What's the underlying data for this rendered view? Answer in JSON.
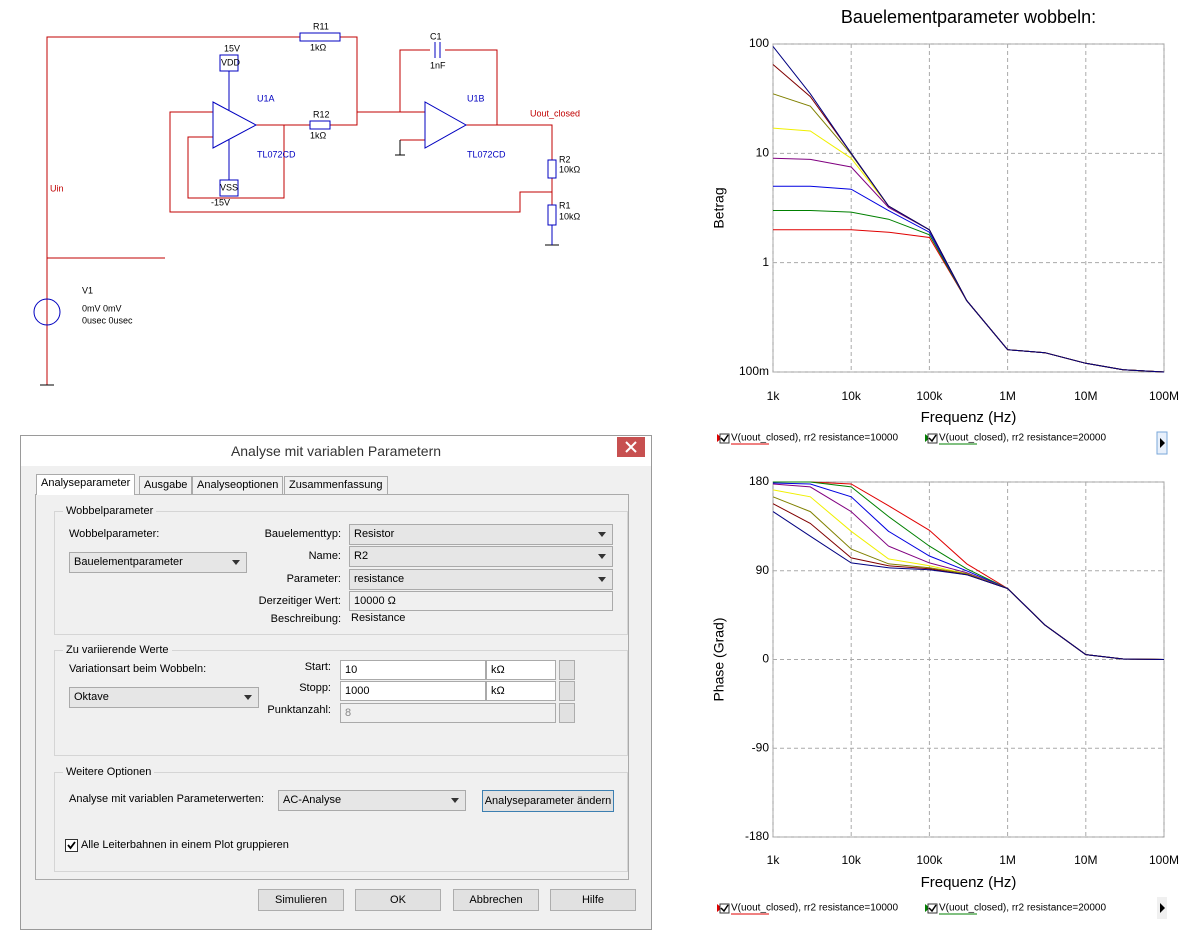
{
  "schematic": {
    "labels": [
      "R11",
      "1kΩ",
      "15V",
      "VDD",
      "U1A",
      "R12",
      "1kΩ",
      "TL072CD",
      "VSS",
      "-15V",
      "C1",
      "1nF",
      "U1B",
      "TL072CD",
      "Uout_closed",
      "R2",
      "10kΩ",
      "R1",
      "10kΩ",
      "Uin",
      "V1",
      "0mV 0mV",
      "0usec 0usec"
    ]
  },
  "dialog": {
    "title": "Analyse mit variablen Parametern",
    "tabs": [
      "Analyseparameter",
      "Ausgabe",
      "Analyseoptionen",
      "Zusammenfassung"
    ],
    "sweep": {
      "group": "Wobbelparameter",
      "label": "Wobbelparameter:",
      "value": "Bauelementparameter",
      "fields": [
        [
          "Bauelementtyp:",
          "Resistor"
        ],
        [
          "Name:",
          "R2"
        ],
        [
          "Parameter:",
          "resistance"
        ],
        [
          "Derzeitiger Wert:",
          "10000 Ω"
        ],
        [
          "Beschreibung:",
          "Resistance"
        ]
      ]
    },
    "vary": {
      "group": "Zu variierende Werte",
      "label": "Variationsart beim Wobbeln:",
      "value": "Oktave",
      "fields": [
        [
          "Start:",
          "10",
          "kΩ"
        ],
        [
          "Stopp:",
          "1000",
          "kΩ"
        ],
        [
          "Punktanzahl:",
          "8"
        ]
      ]
    },
    "options": {
      "group": "Weitere Optionen",
      "label": "Analyse mit variablen Parameterwerten:",
      "value": "AC-Analyse",
      "button": "Analyseparameter ändern",
      "checkbox": "Alle Leiterbahnen in einem Plot gruppieren"
    },
    "buttons": [
      "Simulieren",
      "OK",
      "Abbrechen",
      "Hilfe"
    ]
  },
  "chart_data": [
    {
      "type": "line",
      "title": "Bauelementparameter wobbeln:",
      "x_label": "Frequenz (Hz)",
      "y_label": "Betrag",
      "xlog": true,
      "ylog": true,
      "grid": true,
      "x": [
        1000,
        3000,
        10000,
        30000,
        100000,
        300000,
        1000000,
        3000000,
        10000000,
        30000000,
        100000000
      ],
      "xlim": [
        1000,
        100000000
      ],
      "xticks": [
        {
          "value": 1000,
          "label": "1k"
        },
        {
          "value": 10000,
          "label": "10k"
        },
        {
          "value": 100000,
          "label": "100k"
        },
        {
          "value": 1000000,
          "label": "1M"
        },
        {
          "value": 10000000,
          "label": "10M"
        },
        {
          "value": 100000000,
          "label": "100M"
        }
      ],
      "ylim": [
        0.1,
        100
      ],
      "yticks": [
        {
          "value": 0.1,
          "label": "100m"
        },
        1,
        10,
        100
      ],
      "series": [
        {
          "name": "V(uout_closed), rr2 resistance=10000",
          "color": "#e00000",
          "values": [
            2,
            2,
            2,
            1.9,
            1.7,
            0.45,
            0.16,
            0.15,
            0.12,
            0.105,
            0.1
          ]
        },
        {
          "name": "V(uout_closed), rr2 resistance=20000",
          "color": "#008000",
          "values": [
            3,
            3,
            2.9,
            2.5,
            1.8,
            0.45,
            0.16,
            0.15,
            0.12,
            0.105,
            0.1
          ]
        },
        {
          "color": "#0000e0",
          "values": [
            5,
            5,
            4.7,
            3,
            1.9,
            0.45,
            0.16,
            0.15,
            0.12,
            0.105,
            0.1
          ]
        },
        {
          "color": "#800080",
          "values": [
            9,
            8.8,
            7.5,
            3.2,
            2,
            0.45,
            0.16,
            0.15,
            0.12,
            0.105,
            0.1
          ]
        },
        {
          "color": "#f0f000",
          "values": [
            17,
            16,
            9,
            3.3,
            2,
            0.45,
            0.16,
            0.15,
            0.12,
            0.105,
            0.1
          ]
        },
        {
          "color": "#808000",
          "values": [
            35,
            27,
            9.8,
            3.3,
            2,
            0.45,
            0.16,
            0.15,
            0.12,
            0.105,
            0.1
          ]
        },
        {
          "color": "#800000",
          "values": [
            65,
            33,
            10,
            3.3,
            2,
            0.45,
            0.16,
            0.15,
            0.12,
            0.105,
            0.1
          ]
        },
        {
          "color": "#000080",
          "values": [
            95,
            35,
            10,
            3.3,
            2,
            0.45,
            0.16,
            0.15,
            0.12,
            0.105,
            0.1
          ]
        }
      ]
    },
    {
      "type": "line",
      "x_label": "Frequenz (Hz)",
      "y_label": "Phase (Grad)",
      "xlog": true,
      "ylog": false,
      "grid": true,
      "x": [
        1000,
        3000,
        10000,
        30000,
        100000,
        300000,
        1000000,
        3000000,
        10000000,
        30000000,
        100000000
      ],
      "xlim": [
        1000,
        100000000
      ],
      "xticks": [
        {
          "value": 1000,
          "label": "1k"
        },
        {
          "value": 10000,
          "label": "10k"
        },
        {
          "value": 100000,
          "label": "100k"
        },
        {
          "value": 1000000,
          "label": "1M"
        },
        {
          "value": 10000000,
          "label": "10M"
        },
        {
          "value": 100000000,
          "label": "100M"
        }
      ],
      "ylim": [
        -180,
        180
      ],
      "yticks": [
        -180,
        -90,
        0,
        90,
        180
      ],
      "series": [
        {
          "name": "V(uout_closed), rr2 resistance=10000",
          "color": "#e00000",
          "values": [
            180,
            180,
            178,
            156,
            131,
            97,
            72,
            35,
            5,
            0.5,
            0
          ]
        },
        {
          "name": "V(uout_closed), rr2 resistance=20000",
          "color": "#008000",
          "values": [
            180,
            180,
            175,
            145,
            115,
            92,
            72,
            35,
            5,
            0.5,
            0
          ]
        },
        {
          "color": "#0000e0",
          "values": [
            179,
            178,
            165,
            130,
            105,
            90,
            72,
            35,
            5,
            0.5,
            0
          ]
        },
        {
          "color": "#800080",
          "values": [
            178,
            175,
            150,
            115,
            98,
            88,
            72,
            35,
            5,
            0.5,
            0
          ]
        },
        {
          "color": "#f0f000",
          "values": [
            172,
            165,
            130,
            102,
            95,
            87,
            72,
            35,
            5,
            0.5,
            0
          ]
        },
        {
          "color": "#808000",
          "values": [
            165,
            150,
            112,
            97,
            93,
            87,
            72,
            35,
            5,
            0.5,
            0
          ]
        },
        {
          "color": "#800000",
          "values": [
            158,
            138,
            103,
            95,
            92,
            86,
            72,
            35,
            5,
            0.5,
            0
          ]
        },
        {
          "color": "#000080",
          "values": [
            150,
            125,
            98,
            93,
            91,
            86,
            72,
            35,
            5,
            0.5,
            0
          ]
        }
      ]
    }
  ]
}
